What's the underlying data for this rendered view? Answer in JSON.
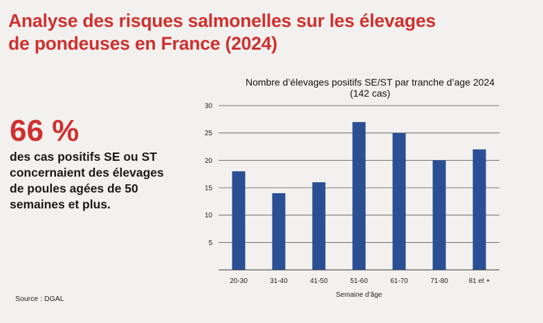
{
  "header": {
    "title_line1": "Analyse des risques salmonelles sur les élevages",
    "title_line2": "de pondeuses en France (2024)"
  },
  "stat": {
    "value": "66 %",
    "description": "des cas positifs SE ou ST concernaient des élevages de poules agées de 50 semaines et plus."
  },
  "source": "Source : DGAL",
  "chart_data": {
    "type": "bar",
    "title": "Nombre d’élevages positifs SE/ST par tranche d’age 2024",
    "subtitle": "(142 cas)",
    "categories": [
      "20-30",
      "31-40",
      "41-50",
      "51-60",
      "61-70",
      "71-80",
      "81 et +"
    ],
    "values": [
      18,
      14,
      16,
      27,
      25,
      20,
      22
    ],
    "xlabel": "Semaine d’âge",
    "ylabel": "",
    "ylim": [
      0,
      30
    ],
    "yticks": [
      5,
      10,
      15,
      20,
      25,
      30
    ],
    "grid": true,
    "bar_color": "#2a4f93"
  }
}
